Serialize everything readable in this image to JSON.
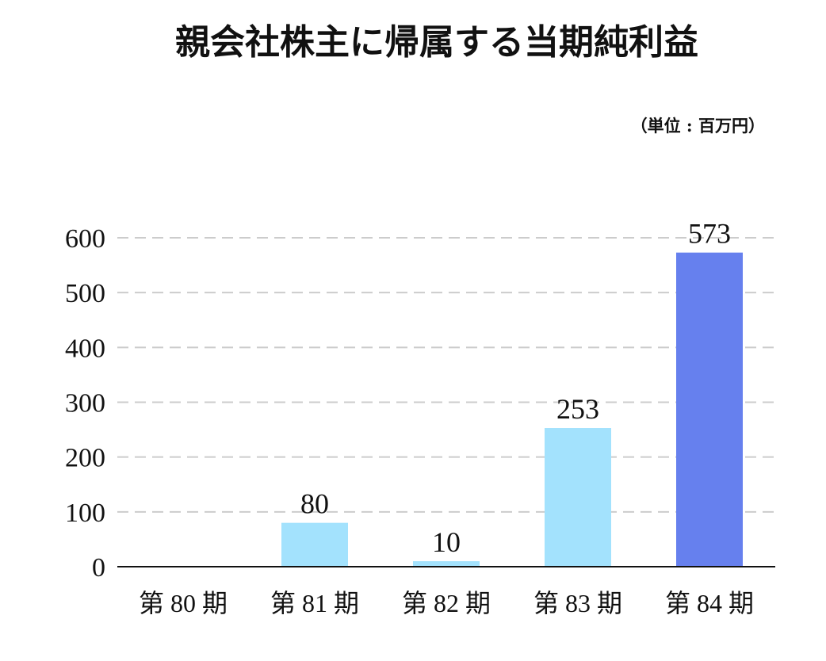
{
  "chart_data": {
    "type": "bar",
    "title": "親会社株主に帰属する当期純利益",
    "unit_label": "（単位 : 百万円）",
    "categories": [
      "第 80 期",
      "第 81 期",
      "第 82 期",
      "第 83 期",
      "第 84 期"
    ],
    "values": [
      0,
      80,
      10,
      253,
      573
    ],
    "data_labels": [
      "",
      "80",
      "10",
      "253",
      "573"
    ],
    "y_ticks": [
      "0",
      "100",
      "200",
      "300",
      "400",
      "500",
      "600"
    ],
    "ylim": [
      0,
      600
    ],
    "grid": true,
    "legend": "none",
    "colors": {
      "default_bar": "#a3e2fd",
      "highlight_bar": "#6680ee",
      "highlight_index": 4
    }
  }
}
